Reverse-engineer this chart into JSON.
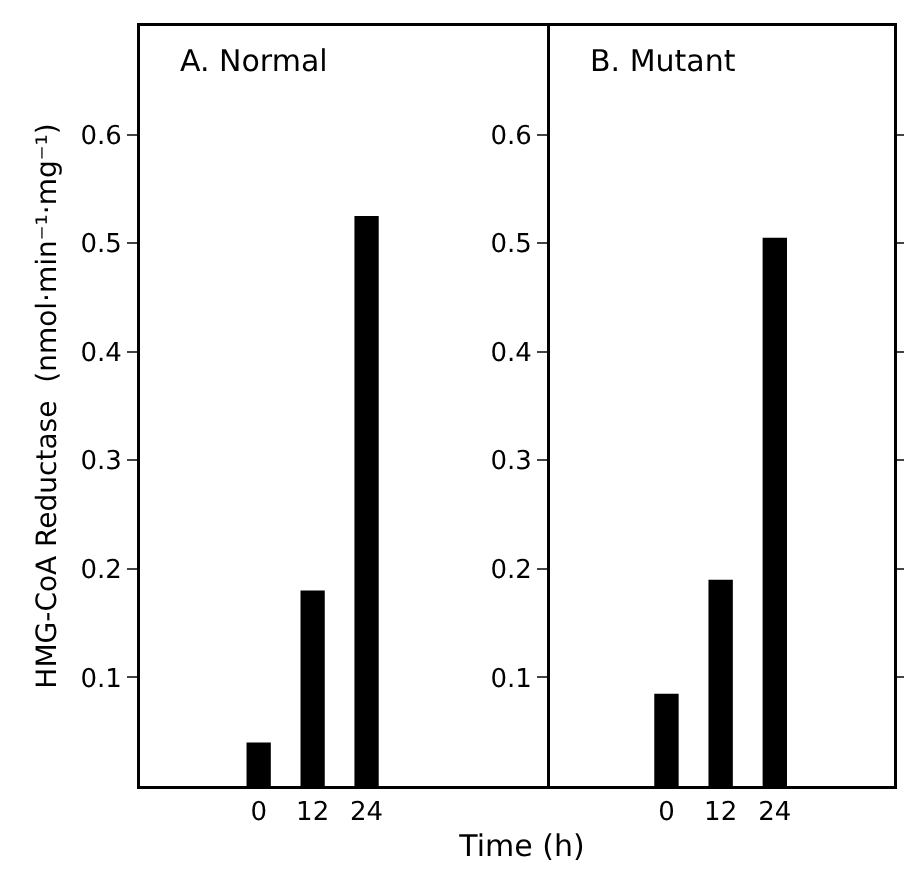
{
  "chart_data": [
    {
      "type": "bar",
      "title": "A. Normal",
      "ylabel": "HMG-CoA Reductase  (nmol·min⁻¹·mg⁻¹)",
      "xlabel": "Time (h)",
      "categories": [
        "0",
        "12",
        "24"
      ],
      "series": [
        {
          "color": "#000000",
          "values": [
            0.04,
            0.18,
            0.525
          ]
        }
      ],
      "ylim": [
        0,
        0.7
      ],
      "yticks": [
        0.1,
        0.2,
        0.3,
        0.4,
        0.5,
        0.6
      ],
      "grid": false
    },
    {
      "type": "bar",
      "title": "B. Mutant",
      "categories": [
        "0",
        "12",
        "24"
      ],
      "series": [
        {
          "color": "#000000",
          "values": [
            0.085,
            0.19,
            0.505
          ]
        }
      ],
      "ylim": [
        0,
        0.7
      ],
      "yticks": [
        0.1,
        0.2,
        0.3,
        0.4,
        0.5,
        0.6
      ],
      "grid": false
    }
  ]
}
